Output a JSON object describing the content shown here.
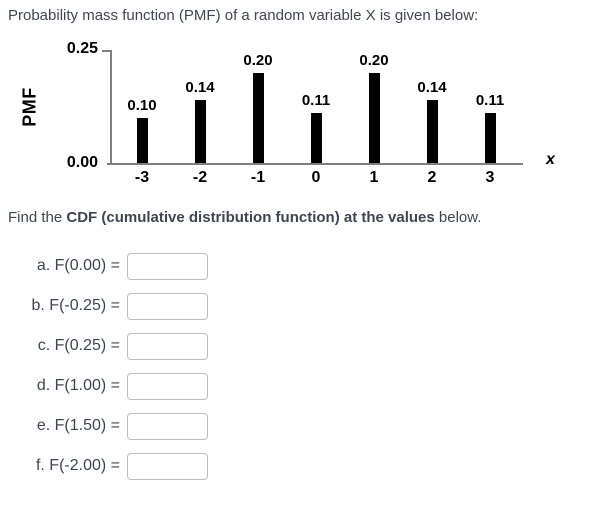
{
  "page": {
    "title": "Probability mass function (PMF) of a random variable X is given below:"
  },
  "instruction": {
    "prefix": "Find the ",
    "bold": "CDF (cumulative distribution function) at the values",
    "suffix": " below."
  },
  "chart_data": {
    "type": "bar",
    "title": "",
    "categories": [
      "-3",
      "-2",
      "-1",
      "0",
      "1",
      "2",
      "3"
    ],
    "values": [
      0.1,
      0.14,
      0.2,
      0.11,
      0.2,
      0.14,
      0.11
    ],
    "data_labels": [
      "0.10",
      "0.14",
      "0.20",
      "0.11",
      "0.20",
      "0.14",
      "0.11"
    ],
    "xlabel": "x",
    "ylabel": "PMF",
    "ylim": [
      0,
      0.25
    ],
    "yticks": [
      "0.25",
      "0.00"
    ],
    "grid": false,
    "legend": "none",
    "bar_color": "#000000",
    "axis_color": "#7f7f7f"
  },
  "form": {
    "rows": [
      {
        "id": "a",
        "label": "a. F(0.00) =",
        "value": ""
      },
      {
        "id": "b",
        "label": "b. F(-0.25) =",
        "value": ""
      },
      {
        "id": "c",
        "label": "c. F(0.25) =",
        "value": ""
      },
      {
        "id": "d",
        "label": "d. F(1.00) =",
        "value": ""
      },
      {
        "id": "e",
        "label": "e. F(1.50) =",
        "value": ""
      },
      {
        "id": "f",
        "label": "f. F(-2.00) =",
        "value": ""
      }
    ]
  },
  "colors": {
    "text": "#3f4650",
    "input_border": "#bcbcbc"
  }
}
